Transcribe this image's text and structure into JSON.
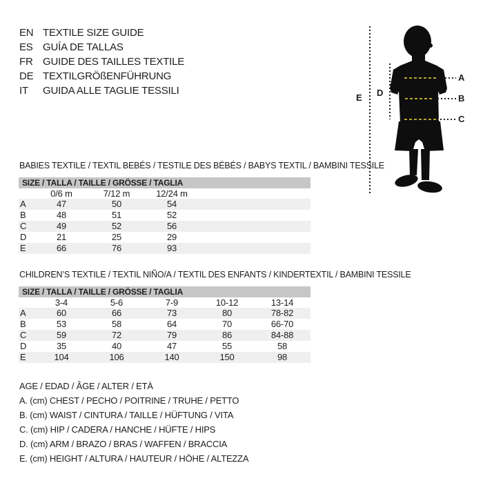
{
  "languages": [
    {
      "code": "EN",
      "text": "TEXTILE SIZE GUIDE"
    },
    {
      "code": "ES",
      "text": "GUÍA DE TALLAS"
    },
    {
      "code": "FR",
      "text": "GUIDE DES TAILLES TEXTILE"
    },
    {
      "code": "DE",
      "text": "TEXTILGRÖßENFÜHRUNG"
    },
    {
      "code": "IT",
      "text": "GUIDA ALLE TAGLIE TESSILI"
    }
  ],
  "figure": {
    "label_a": "A",
    "label_b": "B",
    "label_c": "C",
    "label_d": "D",
    "label_e": "E",
    "silhouette_color": "#0e0e0e",
    "dash_color": "#b9a92f",
    "dot_color": "#1a1a1a"
  },
  "babies_table": {
    "title": "BABIES TEXTILE / TEXTIL BEBÉS / TESTILE DES BÉBÉS / BABYS TEXTIL / BAMBINI TESSILE",
    "header": "SIZE / TALLA / TAILLE / GRÖSSE / TAGLIA",
    "columns": [
      "0/6 m",
      "7/12 m",
      "12/24 m"
    ],
    "rows": [
      {
        "label": "A",
        "values": [
          "47",
          "50",
          "54"
        ]
      },
      {
        "label": "B",
        "values": [
          "48",
          "51",
          "52"
        ]
      },
      {
        "label": "C",
        "values": [
          "49",
          "52",
          "56"
        ]
      },
      {
        "label": "D",
        "values": [
          "21",
          "25",
          "29"
        ]
      },
      {
        "label": "E",
        "values": [
          "66",
          "76",
          "93"
        ]
      }
    ]
  },
  "children_table": {
    "title": "CHILDREN’S TEXTILE / TEXTIL NIÑO/A / TEXTIL DES ENFANTS / KINDERTEXTIL / BAMBINI TESSILE",
    "header": "SIZE / TALLA / TAILLE / GRÖSSE / TAGLIA",
    "columns": [
      "3-4",
      "5-6",
      "7-9",
      "10-12",
      "13-14"
    ],
    "rows": [
      {
        "label": "A",
        "values": [
          "60",
          "66",
          "73",
          "80",
          "78-82"
        ]
      },
      {
        "label": "B",
        "values": [
          "53",
          "58",
          "64",
          "70",
          "66-70"
        ]
      },
      {
        "label": "C",
        "values": [
          "59",
          "72",
          "79",
          "86",
          "84-88"
        ]
      },
      {
        "label": "D",
        "values": [
          "35",
          "40",
          "47",
          "55",
          "58"
        ]
      },
      {
        "label": "E",
        "values": [
          "104",
          "106",
          "140",
          "150",
          "98"
        ]
      }
    ]
  },
  "legend": {
    "lines": [
      "AGE / EDAD / ÂGE / ALTER / ETÀ",
      "A. (cm) CHEST / PECHO / POITRINE / TRUHE / PETTO",
      "B. (cm) WAIST / CINTURA / TAILLE / HÜFTUNG / VITA",
      "C. (cm) HIP / CADERA / HANCHE / HÜFTE / HIPS",
      "D. (cm) ARM / BRAZO / BRAS / WAFFEN / BRACCIA",
      "E. (cm) HEIGHT / ALTURA / HAUTEUR / HÖHE / ALTEZZA"
    ]
  },
  "colors": {
    "header_bar": "#c6c6c6",
    "row_stripe": "#efefef",
    "text": "#1d1d1b"
  }
}
